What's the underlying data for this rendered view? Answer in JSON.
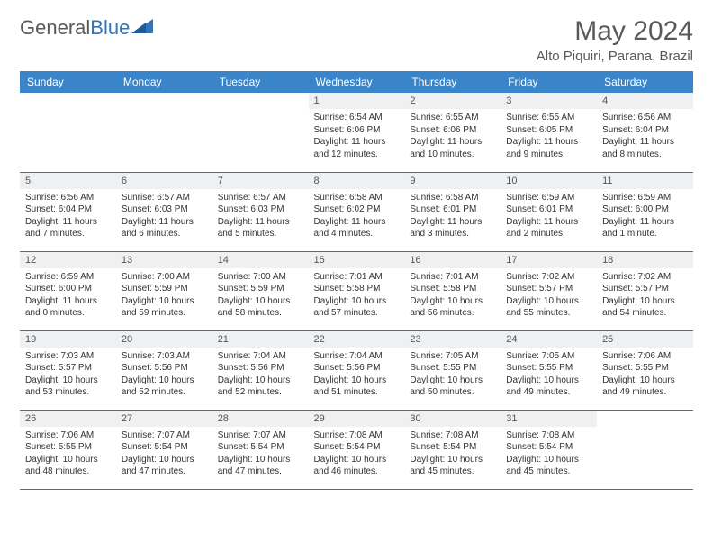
{
  "brand": {
    "part1": "General",
    "part2": "Blue"
  },
  "title": "May 2024",
  "location": "Alto Piquiri, Parana, Brazil",
  "colors": {
    "header_bg": "#3a85c9",
    "border": "#2f76b8",
    "daynum_bg": "#eef0f2",
    "text": "#333333",
    "title_text": "#595959"
  },
  "typography": {
    "title_fontsize": 30,
    "location_fontsize": 15,
    "dayheader_fontsize": 12,
    "daynum_fontsize": 11,
    "body_fontsize": 10
  },
  "calendar": {
    "type": "table",
    "columns": [
      "Sunday",
      "Monday",
      "Tuesday",
      "Wednesday",
      "Thursday",
      "Friday",
      "Saturday"
    ],
    "weeks": [
      [
        null,
        null,
        null,
        {
          "n": "1",
          "sr": "6:54 AM",
          "ss": "6:06 PM",
          "dl": "11 hours and 12 minutes."
        },
        {
          "n": "2",
          "sr": "6:55 AM",
          "ss": "6:06 PM",
          "dl": "11 hours and 10 minutes."
        },
        {
          "n": "3",
          "sr": "6:55 AM",
          "ss": "6:05 PM",
          "dl": "11 hours and 9 minutes."
        },
        {
          "n": "4",
          "sr": "6:56 AM",
          "ss": "6:04 PM",
          "dl": "11 hours and 8 minutes."
        }
      ],
      [
        {
          "n": "5",
          "sr": "6:56 AM",
          "ss": "6:04 PM",
          "dl": "11 hours and 7 minutes."
        },
        {
          "n": "6",
          "sr": "6:57 AM",
          "ss": "6:03 PM",
          "dl": "11 hours and 6 minutes."
        },
        {
          "n": "7",
          "sr": "6:57 AM",
          "ss": "6:03 PM",
          "dl": "11 hours and 5 minutes."
        },
        {
          "n": "8",
          "sr": "6:58 AM",
          "ss": "6:02 PM",
          "dl": "11 hours and 4 minutes."
        },
        {
          "n": "9",
          "sr": "6:58 AM",
          "ss": "6:01 PM",
          "dl": "11 hours and 3 minutes."
        },
        {
          "n": "10",
          "sr": "6:59 AM",
          "ss": "6:01 PM",
          "dl": "11 hours and 2 minutes."
        },
        {
          "n": "11",
          "sr": "6:59 AM",
          "ss": "6:00 PM",
          "dl": "11 hours and 1 minute."
        }
      ],
      [
        {
          "n": "12",
          "sr": "6:59 AM",
          "ss": "6:00 PM",
          "dl": "11 hours and 0 minutes."
        },
        {
          "n": "13",
          "sr": "7:00 AM",
          "ss": "5:59 PM",
          "dl": "10 hours and 59 minutes."
        },
        {
          "n": "14",
          "sr": "7:00 AM",
          "ss": "5:59 PM",
          "dl": "10 hours and 58 minutes."
        },
        {
          "n": "15",
          "sr": "7:01 AM",
          "ss": "5:58 PM",
          "dl": "10 hours and 57 minutes."
        },
        {
          "n": "16",
          "sr": "7:01 AM",
          "ss": "5:58 PM",
          "dl": "10 hours and 56 minutes."
        },
        {
          "n": "17",
          "sr": "7:02 AM",
          "ss": "5:57 PM",
          "dl": "10 hours and 55 minutes."
        },
        {
          "n": "18",
          "sr": "7:02 AM",
          "ss": "5:57 PM",
          "dl": "10 hours and 54 minutes."
        }
      ],
      [
        {
          "n": "19",
          "sr": "7:03 AM",
          "ss": "5:57 PM",
          "dl": "10 hours and 53 minutes."
        },
        {
          "n": "20",
          "sr": "7:03 AM",
          "ss": "5:56 PM",
          "dl": "10 hours and 52 minutes."
        },
        {
          "n": "21",
          "sr": "7:04 AM",
          "ss": "5:56 PM",
          "dl": "10 hours and 52 minutes."
        },
        {
          "n": "22",
          "sr": "7:04 AM",
          "ss": "5:56 PM",
          "dl": "10 hours and 51 minutes."
        },
        {
          "n": "23",
          "sr": "7:05 AM",
          "ss": "5:55 PM",
          "dl": "10 hours and 50 minutes."
        },
        {
          "n": "24",
          "sr": "7:05 AM",
          "ss": "5:55 PM",
          "dl": "10 hours and 49 minutes."
        },
        {
          "n": "25",
          "sr": "7:06 AM",
          "ss": "5:55 PM",
          "dl": "10 hours and 49 minutes."
        }
      ],
      [
        {
          "n": "26",
          "sr": "7:06 AM",
          "ss": "5:55 PM",
          "dl": "10 hours and 48 minutes."
        },
        {
          "n": "27",
          "sr": "7:07 AM",
          "ss": "5:54 PM",
          "dl": "10 hours and 47 minutes."
        },
        {
          "n": "28",
          "sr": "7:07 AM",
          "ss": "5:54 PM",
          "dl": "10 hours and 47 minutes."
        },
        {
          "n": "29",
          "sr": "7:08 AM",
          "ss": "5:54 PM",
          "dl": "10 hours and 46 minutes."
        },
        {
          "n": "30",
          "sr": "7:08 AM",
          "ss": "5:54 PM",
          "dl": "10 hours and 45 minutes."
        },
        {
          "n": "31",
          "sr": "7:08 AM",
          "ss": "5:54 PM",
          "dl": "10 hours and 45 minutes."
        },
        null
      ]
    ],
    "labels": {
      "sunrise": "Sunrise:",
      "sunset": "Sunset:",
      "daylight": "Daylight:"
    }
  }
}
